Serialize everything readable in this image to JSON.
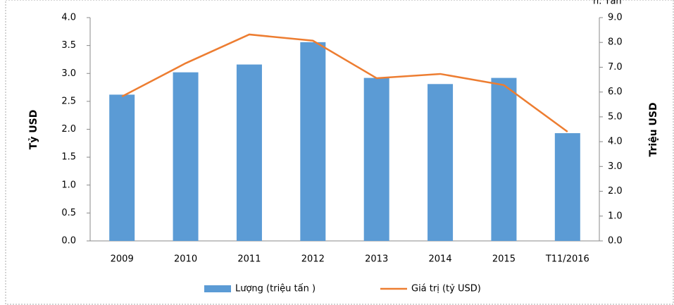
{
  "chart_data": {
    "type": "bar",
    "annotation": "n. Tấn",
    "y_label": "Tỷ USD",
    "y2_label": "Triệu USD",
    "categories": [
      "2009",
      "2010",
      "2011",
      "2012",
      "2013",
      "2014",
      "2015",
      "T11/2016"
    ],
    "series": [
      {
        "name": "Lượng (triệu tấn )",
        "type": "bar",
        "color": "#5b9bd5",
        "values": [
          2.62,
          3.02,
          3.16,
          3.56,
          2.92,
          2.81,
          2.92,
          1.93
        ]
      },
      {
        "name": "Giá trị (tỷ USD)",
        "type": "line",
        "axis": "y2",
        "color": "#ed7d31",
        "values": [
          5.82,
          7.16,
          8.32,
          8.07,
          6.56,
          6.73,
          6.28,
          4.4
        ]
      }
    ],
    "ylim": [
      0,
      4
    ],
    "yticks": [
      {
        "value": 0,
        "label": "0.0"
      },
      {
        "value": 0.5,
        "label": "0.5"
      },
      {
        "value": 1,
        "label": "1.0"
      },
      {
        "value": 1.5,
        "label": "1.5"
      },
      {
        "value": 2,
        "label": "2.0"
      },
      {
        "value": 2.5,
        "label": "2.5"
      },
      {
        "value": 3,
        "label": "3.0"
      },
      {
        "value": 3.5,
        "label": "3.5"
      },
      {
        "value": 4,
        "label": "4.0"
      }
    ],
    "y2lim": [
      0,
      9
    ],
    "y2ticks": [
      {
        "value": 0,
        "label": "0.0"
      },
      {
        "value": 1,
        "label": "1.0"
      },
      {
        "value": 2,
        "label": "2.0"
      },
      {
        "value": 3,
        "label": "3.0"
      },
      {
        "value": 4,
        "label": "4.0"
      },
      {
        "value": 5,
        "label": "5.0"
      },
      {
        "value": 6,
        "label": "6.0"
      },
      {
        "value": 7,
        "label": "7.0"
      },
      {
        "value": 8,
        "label": "8.0"
      },
      {
        "value": 9,
        "label": "9.0"
      }
    ],
    "legend": "bottom"
  }
}
